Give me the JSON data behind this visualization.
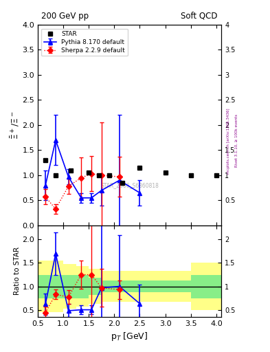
{
  "title_left": "200 GeV pp",
  "title_right": "Soft QCD",
  "ylabel_main": "$\\bar{\\Xi}^+/\\Xi^-$",
  "ylabel_ratio": "Ratio to STAR",
  "xlabel": "p$_{T}$ [GeV]",
  "right_label": "Rivet 3.1.10, ≥ 100k events",
  "arxiv_label": "[arXiv:1306.3436]",
  "watermark": "STAR_2006_S6860818",
  "mcplots_label": "mcplots.cern.ch",
  "star_x": [
    0.65,
    0.85,
    1.15,
    1.5,
    1.7,
    1.9,
    2.15,
    2.5,
    3.0,
    3.5,
    4.0
  ],
  "star_y": [
    1.3,
    1.0,
    1.1,
    1.05,
    1.0,
    1.0,
    0.85,
    1.15,
    1.05,
    1.0,
    1.0
  ],
  "pythia_x": [
    0.65,
    0.85,
    1.1,
    1.35,
    1.55,
    1.75,
    2.1,
    2.5
  ],
  "pythia_y": [
    0.8,
    1.7,
    0.97,
    0.55,
    0.55,
    0.7,
    0.9,
    0.65
  ],
  "pythia_yerr": [
    0.3,
    0.5,
    0.15,
    0.1,
    0.1,
    0.3,
    1.3,
    0.25
  ],
  "sherpa_x": [
    0.65,
    0.85,
    1.1,
    1.35,
    1.55,
    1.75,
    2.1
  ],
  "sherpa_y": [
    0.57,
    0.33,
    0.78,
    0.95,
    1.03,
    1.0,
    0.97
  ],
  "sherpa_yerr": [
    0.15,
    0.1,
    0.15,
    0.4,
    0.35,
    1.05,
    0.4
  ],
  "ratio_pythia_x": [
    0.65,
    0.85,
    1.1,
    1.35,
    1.55,
    1.75,
    2.1,
    2.5
  ],
  "ratio_pythia_y": [
    0.62,
    1.7,
    0.48,
    0.5,
    0.5,
    0.97,
    1.0,
    0.63
  ],
  "ratio_pythia_yerr": [
    0.23,
    0.46,
    0.14,
    0.1,
    0.1,
    1.85,
    1.1,
    0.4
  ],
  "ratio_sherpa_x": [
    0.65,
    0.85,
    1.1,
    1.35,
    1.55,
    1.75,
    2.1
  ],
  "ratio_sherpa_y": [
    0.44,
    0.83,
    0.77,
    1.25,
    1.25,
    0.97,
    0.93
  ],
  "ratio_sherpa_yerr": [
    0.12,
    0.1,
    0.15,
    0.3,
    1.85,
    0.4,
    0.2
  ],
  "band_x_edges": [
    0.5,
    0.75,
    1.0,
    1.25,
    1.5,
    1.75,
    2.0,
    2.25,
    2.5,
    3.0,
    3.5,
    4.1
  ],
  "band_green_lo": [
    0.75,
    0.75,
    0.75,
    0.75,
    0.82,
    0.87,
    0.87,
    0.87,
    0.87,
    0.87,
    0.75
  ],
  "band_green_hi": [
    1.25,
    1.25,
    1.25,
    1.25,
    1.18,
    1.13,
    1.13,
    1.13,
    1.13,
    1.13,
    1.25
  ],
  "band_yellow_lo": [
    0.45,
    0.45,
    0.52,
    0.57,
    0.62,
    0.67,
    0.67,
    0.67,
    0.67,
    0.67,
    0.5
  ],
  "band_yellow_hi": [
    1.55,
    1.55,
    1.48,
    1.43,
    1.38,
    1.33,
    1.33,
    1.33,
    1.33,
    1.33,
    1.5
  ],
  "main_ylim": [
    0.0,
    4.0
  ],
  "ratio_ylim": [
    0.35,
    2.3
  ],
  "xlim": [
    0.5,
    4.1
  ],
  "color_star": "black",
  "color_pythia": "blue",
  "color_sherpa": "red",
  "color_yellow": "#FFFF88",
  "color_green": "#88EE88"
}
